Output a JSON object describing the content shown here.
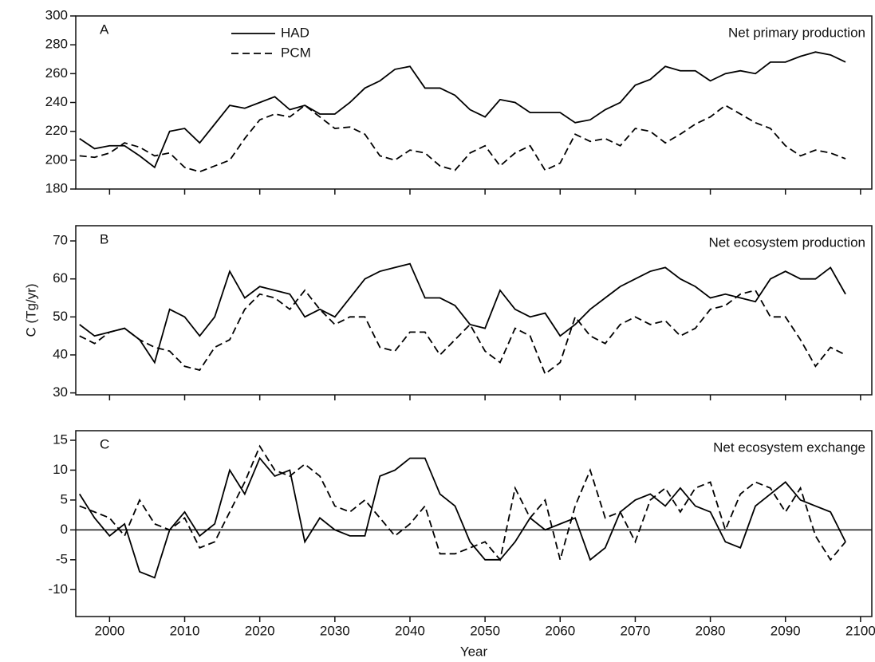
{
  "chart_data": [
    {
      "type": "line",
      "label": "A",
      "title": "Net primary production",
      "x": [
        1996,
        1998,
        2000,
        2002,
        2004,
        2006,
        2008,
        2010,
        2012,
        2014,
        2016,
        2018,
        2020,
        2022,
        2024,
        2026,
        2028,
        2030,
        2032,
        2034,
        2036,
        2038,
        2040,
        2042,
        2044,
        2046,
        2048,
        2050,
        2052,
        2054,
        2056,
        2058,
        2060,
        2062,
        2064,
        2066,
        2068,
        2070,
        2072,
        2074,
        2076,
        2078,
        2080,
        2082,
        2084,
        2086,
        2088,
        2090,
        2092,
        2094,
        2096,
        2098
      ],
      "series": [
        {
          "name": "HAD",
          "color": "#000000",
          "dashed": false,
          "values": [
            215,
            208,
            210,
            210,
            203,
            195,
            220,
            222,
            212,
            225,
            238,
            236,
            240,
            244,
            235,
            238,
            232,
            232,
            240,
            250,
            255,
            263,
            265,
            250,
            250,
            245,
            235,
            230,
            242,
            240,
            233,
            233,
            233,
            226,
            228,
            235,
            240,
            252,
            256,
            265,
            262,
            262,
            255,
            260,
            262,
            260,
            268,
            268,
            272,
            275,
            273,
            268
          ]
        },
        {
          "name": "PCM",
          "color": "#000000",
          "dashed": true,
          "values": [
            203,
            202,
            205,
            212,
            209,
            203,
            205,
            195,
            192,
            196,
            200,
            215,
            228,
            232,
            230,
            238,
            230,
            222,
            223,
            218,
            203,
            200,
            207,
            205,
            196,
            193,
            205,
            210,
            196,
            205,
            210,
            193,
            198,
            218,
            213,
            215,
            210,
            222,
            220,
            212,
            218,
            225,
            230,
            238,
            232,
            226,
            222,
            210,
            203,
            207,
            205,
            201
          ]
        }
      ],
      "xlim": [
        1995.5,
        2101.5
      ],
      "xticks": [
        2000,
        2010,
        2020,
        2030,
        2040,
        2050,
        2060,
        2070,
        2080,
        2090,
        2100
      ],
      "xtick_labels": false,
      "ylim": [
        180,
        300
      ],
      "yticks": [
        180,
        200,
        220,
        240,
        260,
        280,
        300
      ],
      "legend": "top-left"
    },
    {
      "type": "line",
      "label": "B",
      "title": "Net ecosystem production",
      "ylabel": "C (Tg/yr)",
      "x": [
        1996,
        1998,
        2000,
        2002,
        2004,
        2006,
        2008,
        2010,
        2012,
        2014,
        2016,
        2018,
        2020,
        2022,
        2024,
        2026,
        2028,
        2030,
        2032,
        2034,
        2036,
        2038,
        2040,
        2042,
        2044,
        2046,
        2048,
        2050,
        2052,
        2054,
        2056,
        2058,
        2060,
        2062,
        2064,
        2066,
        2068,
        2070,
        2072,
        2074,
        2076,
        2078,
        2080,
        2082,
        2084,
        2086,
        2088,
        2090,
        2092,
        2094,
        2096,
        2098
      ],
      "series": [
        {
          "name": "HAD",
          "color": "#000000",
          "dashed": false,
          "values": [
            48,
            45,
            46,
            47,
            44,
            38,
            52,
            50,
            45,
            50,
            62,
            55,
            58,
            57,
            56,
            50,
            52,
            50,
            55,
            60,
            62,
            63,
            64,
            55,
            55,
            53,
            48,
            47,
            57,
            52,
            50,
            51,
            45,
            48,
            52,
            55,
            58,
            60,
            62,
            63,
            60,
            58,
            55,
            56,
            55,
            54,
            60,
            62,
            60,
            60,
            63,
            56
          ]
        },
        {
          "name": "PCM",
          "color": "#000000",
          "dashed": true,
          "values": [
            45,
            43,
            46,
            47,
            44,
            42,
            41,
            37,
            36,
            42,
            44,
            52,
            56,
            55,
            52,
            57,
            52,
            48,
            50,
            50,
            42,
            41,
            46,
            46,
            40,
            44,
            48,
            41,
            38,
            47,
            45,
            35,
            38,
            50,
            45,
            43,
            48,
            50,
            48,
            49,
            45,
            47,
            52,
            53,
            56,
            57,
            50,
            50,
            44,
            37,
            42,
            40
          ]
        }
      ],
      "xlim": [
        1995.5,
        2101.5
      ],
      "xticks": [
        2000,
        2010,
        2020,
        2030,
        2040,
        2050,
        2060,
        2070,
        2080,
        2090,
        2100
      ],
      "xtick_labels": false,
      "ylim": [
        29.5,
        74
      ],
      "yticks": [
        30,
        40,
        50,
        60,
        70
      ]
    },
    {
      "type": "line",
      "label": "C",
      "title": "Net ecosystem exchange",
      "xlabel": "Year",
      "reference_line": 0,
      "x": [
        1996,
        1998,
        2000,
        2002,
        2004,
        2006,
        2008,
        2010,
        2012,
        2014,
        2016,
        2018,
        2020,
        2022,
        2024,
        2026,
        2028,
        2030,
        2032,
        2034,
        2036,
        2038,
        2040,
        2042,
        2044,
        2046,
        2048,
        2050,
        2052,
        2054,
        2056,
        2058,
        2060,
        2062,
        2064,
        2066,
        2068,
        2070,
        2072,
        2074,
        2076,
        2078,
        2080,
        2082,
        2084,
        2086,
        2088,
        2090,
        2092,
        2094,
        2096,
        2098
      ],
      "series": [
        {
          "name": "HAD",
          "color": "#000000",
          "dashed": false,
          "values": [
            6,
            2,
            -1,
            1,
            -7,
            -8,
            0,
            3,
            -1,
            1,
            10,
            6,
            12,
            9,
            10,
            -2,
            2,
            0,
            -1,
            -1,
            9,
            10,
            12,
            12,
            6,
            4,
            -2,
            -5,
            -5,
            -2,
            2,
            0,
            1,
            2,
            -5,
            -3,
            3,
            5,
            6,
            4,
            7,
            4,
            3,
            -2,
            -3,
            4,
            6,
            8,
            5,
            4,
            3,
            -2
          ]
        },
        {
          "name": "PCM",
          "color": "#000000",
          "dashed": true,
          "values": [
            4,
            3,
            2,
            -1,
            5,
            1,
            0,
            2,
            -3,
            -2,
            3,
            8,
            14,
            10,
            9,
            11,
            9,
            4,
            3,
            5,
            2,
            -1,
            1,
            4,
            -4,
            -4,
            -3,
            -2,
            -5,
            7,
            2,
            5,
            -5,
            4,
            10,
            2,
            3,
            -2,
            5,
            7,
            3,
            7,
            8,
            0,
            6,
            8,
            7,
            3,
            7,
            -1,
            -5,
            -2
          ]
        }
      ],
      "xlim": [
        1995.5,
        2101.5
      ],
      "xticks": [
        2000,
        2010,
        2020,
        2030,
        2040,
        2050,
        2060,
        2070,
        2080,
        2090,
        2100
      ],
      "xtick_labels": true,
      "ylim": [
        -14.5,
        16.6
      ],
      "yticks": [
        -10,
        -5,
        0,
        5,
        10,
        15
      ]
    }
  ]
}
